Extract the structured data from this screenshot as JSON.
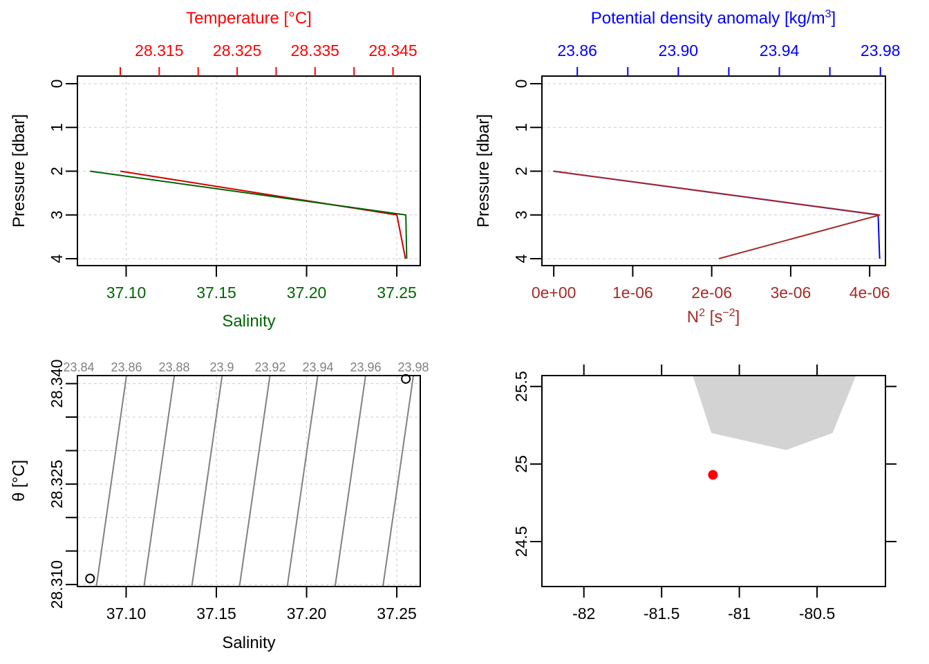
{
  "chart_data": [
    {
      "id": "tsp",
      "type": "line",
      "title": "Temperature [°C]",
      "xlabel": "Salinity",
      "ylabel": "Pressure [dbar]",
      "y_ticks": [
        "0",
        "1",
        "2",
        "3",
        "4"
      ],
      "ylim": [
        4,
        0
      ],
      "bottom_axis": {
        "label": "Salinity",
        "ticks": [
          "37.10",
          "37.15",
          "37.20",
          "37.25"
        ],
        "range": [
          37.073,
          37.263
        ],
        "color": "#006400"
      },
      "top_axis": {
        "label": "Temperature [°C]",
        "ticks": [
          "28.315",
          "28.325",
          "28.335",
          "28.345"
        ],
        "range": [
          28.3045,
          28.3485
        ],
        "color": "#ff0000"
      },
      "grid": true,
      "series": [
        {
          "name": "Salinity",
          "axis": "bottom",
          "color": "#006400",
          "x": [
            37.08,
            37.255,
            37.2555
          ],
          "y": [
            2,
            3,
            4
          ]
        },
        {
          "name": "Temperature [°C]",
          "axis": "top",
          "color": "#cc0000",
          "x": [
            28.31,
            28.3455,
            28.3466
          ],
          "y": [
            2,
            3,
            4
          ]
        }
      ]
    },
    {
      "id": "density",
      "type": "line",
      "title": "Potential density anomaly [kg/m³]",
      "xlabel": "N² [s⁻²]",
      "ylabel": "Pressure [dbar]",
      "y_ticks": [
        "0",
        "1",
        "2",
        "3",
        "4"
      ],
      "ylim": [
        4,
        0
      ],
      "bottom_axis": {
        "label": "N² [s⁻²]",
        "label_base": "N",
        "label_sup": "2",
        "label_unit_open": "[s",
        "label_unit_sup": "−2",
        "label_unit_close": "]",
        "ticks": [
          "0e+00",
          "1e-06",
          "2e-06",
          "3e-06",
          "4e-06"
        ],
        "tick_values": [
          0,
          1e-06,
          2e-06,
          3e-06,
          4e-06
        ],
        "range": [
          -1.5e-07,
          4.2e-06
        ],
        "color": "#a52a2a"
      },
      "top_axis": {
        "label": "Potential density anomaly [kg/m³]",
        "label_main": "Potential density anomaly [kg/m",
        "label_sup": "3",
        "label_close": "]",
        "ticks": [
          "23.86",
          "23.90",
          "23.94",
          "23.98"
        ],
        "tick_values": [
          23.86,
          23.9,
          23.94,
          23.98
        ],
        "minor_ticks": [
          23.88,
          23.92,
          23.96
        ],
        "range": [
          23.846,
          23.982
        ],
        "color": "#0000ff"
      },
      "grid": true,
      "series": [
        {
          "name": "Potential density anomaly",
          "axis": "top",
          "color": "#0000ff",
          "x": [
            23.8505,
            23.9791,
            23.9797
          ],
          "y": [
            2,
            3,
            4
          ]
        },
        {
          "name": "N²",
          "axis": "bottom",
          "color": "#a52a2a",
          "x": [
            0,
            4.13e-06,
            2.09e-06
          ],
          "y": [
            2,
            3,
            4
          ]
        }
      ]
    },
    {
      "id": "ts",
      "type": "scatter",
      "xlabel": "Salinity",
      "ylabel": "θ [°C]",
      "x_ticks": [
        "37.10",
        "37.15",
        "37.20",
        "37.25"
      ],
      "x_tick_values": [
        37.1,
        37.15,
        37.2,
        37.25
      ],
      "y_ticks": [
        "28.310",
        "28.325",
        "28.340"
      ],
      "y_tick_values": [
        28.31,
        28.325,
        28.34
      ],
      "y_minor_ticks": [
        28.315,
        28.32,
        28.33,
        28.335
      ],
      "xlim": [
        37.073,
        37.263
      ],
      "ylim": [
        28.3097,
        28.3412
      ],
      "grid": true,
      "points": [
        {
          "x": 37.08,
          "y": 28.3109
        },
        {
          "x": 37.255,
          "y": 28.3407
        }
      ],
      "isopycnal_labels": [
        "23.84",
        "23.86",
        "23.88",
        "23.9",
        "23.92",
        "23.94",
        "23.96",
        "23.98"
      ],
      "isopycnals": [
        {
          "label": "23.86",
          "x_bottom": 37.0835,
          "x_top": 37.1002
        },
        {
          "label": "23.88",
          "x_bottom": 37.1099,
          "x_top": 37.1267
        },
        {
          "label": "23.9",
          "x_bottom": 37.1364,
          "x_top": 37.1532
        },
        {
          "label": "23.92",
          "x_bottom": 37.1628,
          "x_top": 37.1797
        },
        {
          "label": "23.94",
          "x_bottom": 37.1893,
          "x_top": 37.2062
        },
        {
          "label": "23.96",
          "x_bottom": 37.2158,
          "x_top": 37.2327
        },
        {
          "label": "23.98",
          "x_bottom": 37.2423,
          "x_top": 37.2592
        }
      ]
    },
    {
      "id": "map",
      "type": "scatter",
      "x_ticks": [
        "-82",
        "-81.5",
        "-81",
        "-80.5"
      ],
      "x_tick_values": [
        -82,
        -81.5,
        -81,
        -80.5
      ],
      "y_ticks": [
        "24.5",
        "25",
        "25.5"
      ],
      "y_tick_values": [
        24.5,
        25,
        25.5
      ],
      "xlim": [
        -82.27,
        -80.06
      ],
      "ylim": [
        24.21,
        25.57
      ],
      "station": {
        "lon": -81.17,
        "lat": 24.93,
        "color": "#ff0000"
      },
      "land_color": "#d3d3d3",
      "land": [
        [
          -81.3,
          25.57
        ],
        [
          -80.25,
          25.57
        ],
        [
          -80.4,
          25.2
        ],
        [
          -80.7,
          25.09
        ],
        [
          -81.18,
          25.2
        ],
        [
          -81.18,
          25.2
        ],
        [
          -81.18,
          25.2
        ],
        [
          -81.18,
          25.2
        ],
        [
          -81.18,
          25.2
        ],
        [
          -81.18,
          25.2
        ],
        [
          -81.18,
          25.2
        ]
      ]
    }
  ]
}
